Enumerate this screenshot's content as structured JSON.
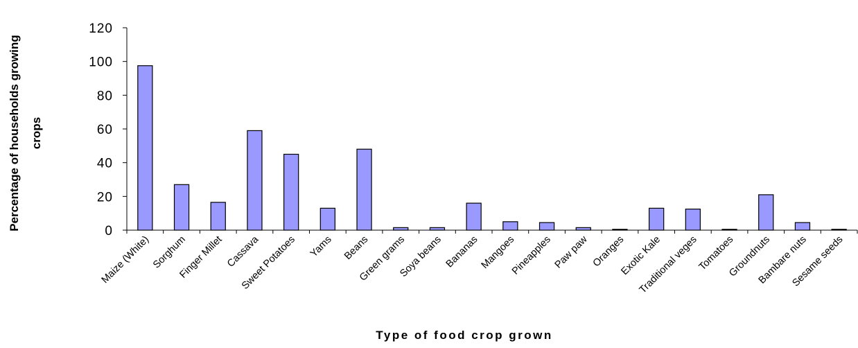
{
  "chart_data": {
    "type": "bar",
    "title": "",
    "xlabel": "Type of food crop grown",
    "ylabel_lines": [
      "Percentage of households growing",
      "crops"
    ],
    "ylim": [
      0,
      120
    ],
    "yticks": [
      "0",
      "20",
      "40",
      "60",
      "80",
      "100",
      "120"
    ],
    "grid": false,
    "bar_color": "#9999ff",
    "categories": [
      "Maize (White)",
      "Sorghum",
      "Finger Millet",
      "Cassava",
      "Sweet Potatoes",
      "Yams",
      "Beans",
      "Green grams",
      "Soya beans",
      "Bananas",
      "Mangoes",
      "Pineapples",
      "Paw paw",
      "Oranges",
      "Exotic Kale",
      "Traditional veges",
      "Tomatoes",
      "Groundnuts",
      "Bambare nuts",
      "Sesame seeds"
    ],
    "values": [
      97.5,
      27,
      16.5,
      59,
      45,
      13,
      48,
      1.5,
      1.5,
      16,
      5,
      4.5,
      1.5,
      0.5,
      13,
      12.5,
      0.5,
      21,
      4.5,
      0.5
    ]
  }
}
